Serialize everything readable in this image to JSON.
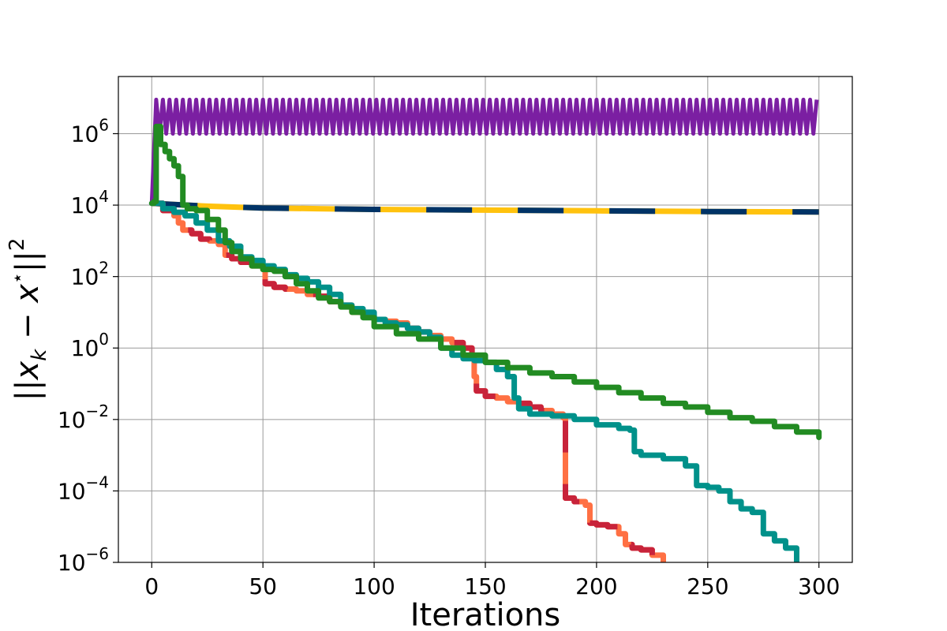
{
  "chart_data": {
    "type": "line",
    "title": "",
    "xlabel": "Iterations",
    "ylabel_text": "||x_k − x*||²",
    "ylabel_parts": {
      "open": "||",
      "x": "x",
      "sub": "k",
      "minus": " − ",
      "x2": "x",
      "star": "⋆",
      "close": "||",
      "sup": "2"
    },
    "xlim": [
      -15,
      315
    ],
    "ylim_log10": [
      -6,
      7.6
    ],
    "yscale": "log",
    "grid": true,
    "xticks": [
      0,
      50,
      100,
      150,
      200,
      250,
      300
    ],
    "xtick_labels": [
      "0",
      "50",
      "100",
      "150",
      "200",
      "250",
      "300"
    ],
    "yticks_log10": [
      -6,
      -4,
      -2,
      0,
      2,
      4,
      6
    ],
    "ytick_labels": [
      {
        "base": "10",
        "exp": "−6"
      },
      {
        "base": "10",
        "exp": "−4"
      },
      {
        "base": "10",
        "exp": "−2"
      },
      {
        "base": "10",
        "exp": "0"
      },
      {
        "base": "10",
        "exp": "2"
      },
      {
        "base": "10",
        "exp": "4"
      },
      {
        "base": "10",
        "exp": "6"
      }
    ],
    "series": [
      {
        "key": "oscillating",
        "color": "#7b1fa2",
        "style": "band",
        "x_range": [
          2,
          300
        ],
        "period": 3,
        "y_low_log10": 6.0,
        "y_high_log10": 6.95
      },
      {
        "key": "slow-dashed",
        "color": "#003366",
        "color2": "#ffc20e",
        "style": "dashed-two-tone",
        "x": [
          0,
          10,
          25,
          50,
          75,
          100,
          150,
          200,
          250,
          300
        ],
        "y_log10": [
          4.05,
          4.02,
          3.97,
          3.92,
          3.9,
          3.88,
          3.86,
          3.84,
          3.82,
          3.81
        ]
      },
      {
        "key": "red-orange",
        "color": "#c8233a",
        "color2": "#ff7043",
        "style": "two-tone",
        "x": [
          0,
          5,
          10,
          12,
          14,
          18,
          22,
          26,
          30,
          33,
          36,
          40,
          45,
          50,
          51,
          55,
          60,
          65,
          70,
          75,
          80,
          85,
          90,
          95,
          100,
          105,
          110,
          115,
          120,
          125,
          130,
          135,
          140,
          144,
          145,
          146,
          150,
          155,
          160,
          165,
          170,
          175,
          180,
          185,
          186,
          190,
          195,
          197,
          200,
          205,
          210,
          213,
          216,
          220,
          225,
          230
        ],
        "y_log10": [
          4.05,
          3.85,
          3.7,
          3.5,
          3.3,
          3.2,
          3.05,
          3.0,
          2.9,
          2.6,
          2.5,
          2.4,
          2.3,
          2.2,
          1.8,
          1.7,
          1.65,
          1.6,
          1.5,
          1.45,
          1.3,
          1.2,
          1.0,
          0.9,
          0.8,
          0.75,
          0.7,
          0.55,
          0.45,
          0.35,
          0.25,
          0.15,
          0.0,
          -0.2,
          -0.8,
          -1.2,
          -1.35,
          -1.4,
          -1.5,
          -1.55,
          -1.65,
          -1.75,
          -1.85,
          -1.95,
          -4.2,
          -4.3,
          -4.4,
          -4.9,
          -4.95,
          -5.0,
          -5.2,
          -5.5,
          -5.6,
          -5.65,
          -5.8,
          -6.0
        ]
      },
      {
        "key": "teal",
        "color": "#00918a",
        "style": "solid",
        "x": [
          0,
          5,
          10,
          15,
          20,
          25,
          30,
          35,
          40,
          45,
          50,
          55,
          60,
          65,
          70,
          75,
          80,
          85,
          90,
          95,
          100,
          105,
          110,
          115,
          120,
          125,
          130,
          135,
          140,
          145,
          150,
          155,
          160,
          163,
          165,
          170,
          180,
          190,
          200,
          210,
          215,
          217,
          220,
          230,
          240,
          245,
          250,
          255,
          260,
          265,
          270,
          275,
          280,
          285,
          290
        ],
        "y_log10": [
          4.05,
          3.9,
          3.8,
          3.7,
          3.5,
          3.3,
          3.0,
          2.85,
          2.55,
          2.45,
          2.3,
          2.2,
          2.05,
          1.95,
          1.85,
          1.7,
          1.5,
          1.2,
          1.1,
          1.0,
          0.8,
          0.7,
          0.65,
          0.55,
          0.45,
          0.3,
          0.0,
          -0.2,
          -0.3,
          -0.35,
          -0.4,
          -0.6,
          -0.8,
          -1.4,
          -1.7,
          -1.85,
          -1.9,
          -2.0,
          -2.15,
          -2.25,
          -2.3,
          -2.9,
          -3.0,
          -3.1,
          -3.3,
          -3.85,
          -3.9,
          -4.0,
          -4.3,
          -4.5,
          -4.6,
          -5.2,
          -5.4,
          -5.6,
          -6.0
        ]
      },
      {
        "key": "green",
        "color": "#228b22",
        "style": "solid",
        "x": [
          0,
          1,
          2,
          4,
          6,
          8,
          10,
          12,
          14,
          16,
          20,
          25,
          30,
          33,
          36,
          40,
          45,
          50,
          55,
          60,
          65,
          70,
          75,
          80,
          85,
          90,
          95,
          100,
          110,
          120,
          130,
          140,
          150,
          160,
          170,
          180,
          190,
          200,
          210,
          220,
          230,
          240,
          250,
          260,
          270,
          280,
          290,
          300
        ],
        "y_log10": [
          4.05,
          4.1,
          6.2,
          5.7,
          5.5,
          5.3,
          5.1,
          4.8,
          4.0,
          3.9,
          3.85,
          3.6,
          3.3,
          2.95,
          2.7,
          2.5,
          2.3,
          2.2,
          2.15,
          2.0,
          1.8,
          1.6,
          1.4,
          1.3,
          1.15,
          1.0,
          0.85,
          0.6,
          0.4,
          0.25,
          0.0,
          -0.2,
          -0.4,
          -0.55,
          -0.7,
          -0.8,
          -0.95,
          -1.1,
          -1.25,
          -1.4,
          -1.55,
          -1.65,
          -1.8,
          -1.95,
          -2.05,
          -2.2,
          -2.35,
          -2.5
        ]
      }
    ]
  }
}
